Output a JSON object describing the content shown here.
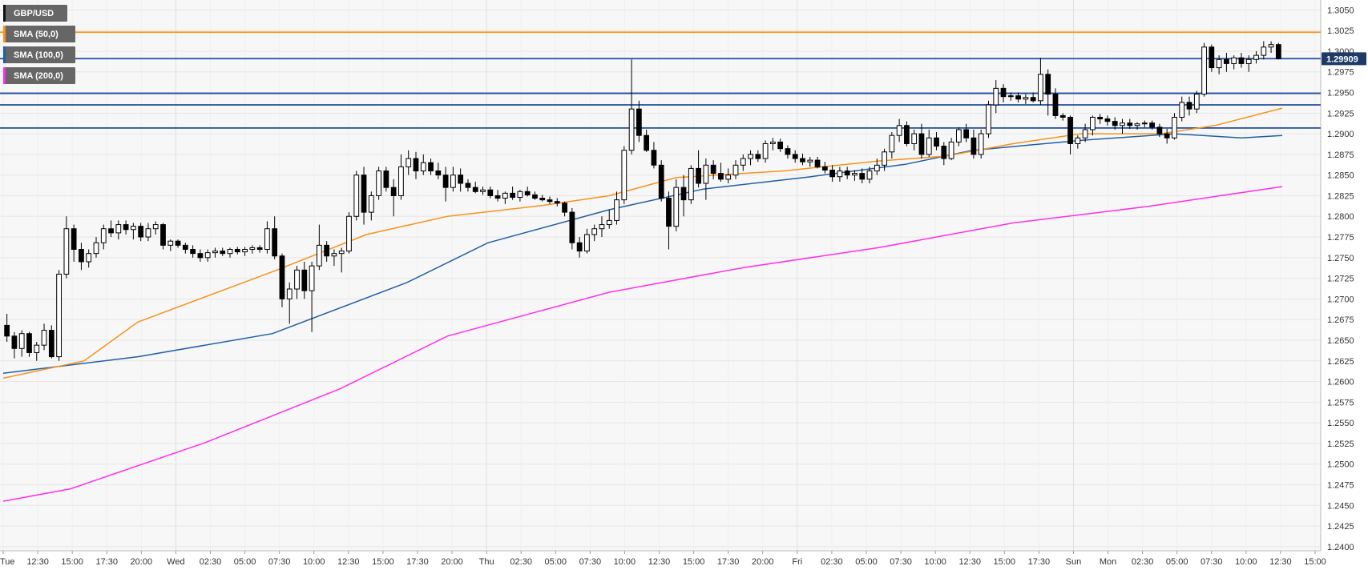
{
  "legend": {
    "main": "GBP/USD",
    "sma50": "SMA (50,0)",
    "sma100": "SMA (100,0)",
    "sma200": "SMA (200,0)"
  },
  "colors": {
    "background": "#f7f7f7",
    "grid": "#e6e6e6",
    "candle_up": "#ffffff",
    "candle_down": "#000000",
    "sma50": "#f7931a",
    "sma100": "#1f5fa8",
    "sma200": "#ff2ee6",
    "hline_orange": "#f7931a",
    "hline_blue": "#1f4ea0",
    "price_tag_bg": "#1f3a66"
  },
  "chart_data": {
    "type": "line",
    "y_ticks": [
      "1.3050",
      "1.3025",
      "1.3000",
      "1.2975",
      "1.2950",
      "1.2925",
      "1.2900",
      "1.2875",
      "1.2850",
      "1.2825",
      "1.2800",
      "1.2775",
      "1.2750",
      "1.2725",
      "1.2700",
      "1.2675",
      "1.2650",
      "1.2625",
      "1.2600",
      "1.2575",
      "1.2550",
      "1.2525",
      "1.2500",
      "1.2475",
      "1.2450",
      "1.2425",
      "1.2400"
    ],
    "ylim": [
      1.2395,
      1.3062
    ],
    "x_ticks": [
      "Tue",
      "12:30",
      "15:00",
      "17:30",
      "20:00",
      "Wed",
      "02:30",
      "05:00",
      "07:30",
      "10:00",
      "12:30",
      "15:00",
      "17:30",
      "20:00",
      "Thu",
      "02:30",
      "05:00",
      "07:30",
      "10:00",
      "12:30",
      "15:00",
      "17:30",
      "20:00",
      "Fri",
      "02:30",
      "05:00",
      "07:30",
      "10:00",
      "12:30",
      "15:00",
      "17:30",
      "Sun",
      "Mon",
      "02:30",
      "05:00",
      "07:30",
      "10:00",
      "12:30",
      "15:00"
    ],
    "current_price": "1.29909",
    "horizontal_levels": [
      {
        "value": 1.3023,
        "color": "orange"
      },
      {
        "value": 1.2991,
        "color": "blue"
      },
      {
        "value": 1.2949,
        "color": "blue"
      },
      {
        "value": 1.2935,
        "color": "blue"
      },
      {
        "value": 1.2907,
        "color": "blue"
      }
    ],
    "candles": [
      [
        1.2668,
        1.2682,
        1.2648,
        1.2655
      ],
      [
        1.2655,
        1.266,
        1.2628,
        1.264
      ],
      [
        1.264,
        1.2662,
        1.263,
        1.2658
      ],
      [
        1.2658,
        1.266,
        1.263,
        1.2635
      ],
      [
        1.2635,
        1.2648,
        1.2625,
        1.2644
      ],
      [
        1.2644,
        1.267,
        1.2638,
        1.2662
      ],
      [
        1.2662,
        1.2668,
        1.2628,
        1.263
      ],
      [
        1.263,
        1.2735,
        1.2625,
        1.273
      ],
      [
        1.273,
        1.28,
        1.2725,
        1.2785
      ],
      [
        1.2785,
        1.279,
        1.2745,
        1.276
      ],
      [
        1.276,
        1.2768,
        1.2735,
        1.2745
      ],
      [
        1.2745,
        1.276,
        1.2738,
        1.2755
      ],
      [
        1.2755,
        1.2775,
        1.275,
        1.2768
      ],
      [
        1.2768,
        1.279,
        1.276,
        1.2785
      ],
      [
        1.2785,
        1.2795,
        1.2775,
        1.278
      ],
      [
        1.278,
        1.2795,
        1.2772,
        1.279
      ],
      [
        1.279,
        1.2795,
        1.2778,
        1.2784
      ],
      [
        1.2784,
        1.2792,
        1.2772,
        1.2788
      ],
      [
        1.2788,
        1.2792,
        1.277,
        1.2775
      ],
      [
        1.2775,
        1.2792,
        1.277,
        1.2785
      ],
      [
        1.2785,
        1.2794,
        1.2778,
        1.279
      ],
      [
        1.279,
        1.2792,
        1.276,
        1.2765
      ],
      [
        1.2765,
        1.2772,
        1.2758,
        1.277
      ],
      [
        1.277,
        1.2772,
        1.2762,
        1.2765
      ],
      [
        1.2765,
        1.2768,
        1.2755,
        1.276
      ],
      [
        1.276,
        1.2765,
        1.275,
        1.2755
      ],
      [
        1.2755,
        1.276,
        1.2745,
        1.275
      ],
      [
        1.275,
        1.276,
        1.2745,
        1.2756
      ],
      [
        1.2756,
        1.2762,
        1.275,
        1.2758
      ],
      [
        1.2758,
        1.2762,
        1.2752,
        1.2755
      ],
      [
        1.2755,
        1.2762,
        1.275,
        1.276
      ],
      [
        1.276,
        1.2763,
        1.2754,
        1.2757
      ],
      [
        1.2757,
        1.2763,
        1.2752,
        1.276
      ],
      [
        1.276,
        1.2765,
        1.2755,
        1.2762
      ],
      [
        1.2762,
        1.2765,
        1.2756,
        1.276
      ],
      [
        1.276,
        1.2794,
        1.2755,
        1.2785
      ],
      [
        1.2785,
        1.28,
        1.2748,
        1.2752
      ],
      [
        1.2752,
        1.2755,
        1.269,
        1.27
      ],
      [
        1.27,
        1.272,
        1.267,
        1.2712
      ],
      [
        1.2712,
        1.274,
        1.27,
        1.2735
      ],
      [
        1.2735,
        1.2745,
        1.27,
        1.271
      ],
      [
        1.271,
        1.2745,
        1.266,
        1.274
      ],
      [
        1.274,
        1.279,
        1.2735,
        1.2765
      ],
      [
        1.2765,
        1.277,
        1.2745,
        1.2752
      ],
      [
        1.2752,
        1.276,
        1.274,
        1.2755
      ],
      [
        1.2755,
        1.2762,
        1.2732,
        1.2758
      ],
      [
        1.2758,
        1.2805,
        1.2755,
        1.28
      ],
      [
        1.28,
        1.2855,
        1.2795,
        1.285
      ],
      [
        1.285,
        1.286,
        1.279,
        1.2805
      ],
      [
        1.2805,
        1.283,
        1.2795,
        1.2825
      ],
      [
        1.2825,
        1.286,
        1.282,
        1.2855
      ],
      [
        1.2855,
        1.286,
        1.283,
        1.2835
      ],
      [
        1.2835,
        1.2845,
        1.28,
        1.2825
      ],
      [
        1.2825,
        1.2875,
        1.282,
        1.286
      ],
      [
        1.286,
        1.288,
        1.285,
        1.287
      ],
      [
        1.287,
        1.2878,
        1.2845,
        1.2855
      ],
      [
        1.2855,
        1.2875,
        1.285,
        1.2865
      ],
      [
        1.2865,
        1.287,
        1.285,
        1.2855
      ],
      [
        1.2855,
        1.2865,
        1.2845,
        1.285
      ],
      [
        1.285,
        1.286,
        1.2818,
        1.2835
      ],
      [
        1.2835,
        1.286,
        1.283,
        1.285
      ],
      [
        1.285,
        1.2858,
        1.283,
        1.284
      ],
      [
        1.284,
        1.2845,
        1.283,
        1.2835
      ],
      [
        1.2835,
        1.2842,
        1.2828,
        1.283
      ],
      [
        1.283,
        1.2836,
        1.2826,
        1.2832
      ],
      [
        1.2832,
        1.2836,
        1.2822,
        1.2825
      ],
      [
        1.2825,
        1.2832,
        1.2818,
        1.2822
      ],
      [
        1.2822,
        1.283,
        1.2815,
        1.2828
      ],
      [
        1.2828,
        1.2836,
        1.282,
        1.2823
      ],
      [
        1.2823,
        1.2832,
        1.2818,
        1.283
      ],
      [
        1.283,
        1.2836,
        1.2824,
        1.2826
      ],
      [
        1.2826,
        1.283,
        1.282,
        1.2822
      ],
      [
        1.2822,
        1.2826,
        1.2818,
        1.282
      ],
      [
        1.282,
        1.2824,
        1.2815,
        1.2818
      ],
      [
        1.2818,
        1.2822,
        1.2812,
        1.2816
      ],
      [
        1.2816,
        1.2818,
        1.28,
        1.2805
      ],
      [
        1.2805,
        1.281,
        1.276,
        1.2768
      ],
      [
        1.2768,
        1.2775,
        1.275,
        1.2758
      ],
      [
        1.2758,
        1.2785,
        1.2755,
        1.2778
      ],
      [
        1.2778,
        1.279,
        1.277,
        1.2785
      ],
      [
        1.2785,
        1.28,
        1.2775,
        1.279
      ],
      [
        1.279,
        1.2808,
        1.2785,
        1.2795
      ],
      [
        1.2795,
        1.283,
        1.279,
        1.282
      ],
      [
        1.282,
        1.2885,
        1.2815,
        1.288
      ],
      [
        1.288,
        1.299,
        1.2875,
        1.293
      ],
      [
        1.293,
        1.294,
        1.289,
        1.2898
      ],
      [
        1.2898,
        1.2905,
        1.2878,
        1.288
      ],
      [
        1.288,
        1.289,
        1.2858,
        1.2862
      ],
      [
        1.2862,
        1.2868,
        1.2818,
        1.2822
      ],
      [
        1.2822,
        1.283,
        1.276,
        1.2788
      ],
      [
        1.2788,
        1.2845,
        1.2782,
        1.2835
      ],
      [
        1.2835,
        1.285,
        1.28,
        1.282
      ],
      [
        1.282,
        1.2862,
        1.2815,
        1.2858
      ],
      [
        1.2858,
        1.288,
        1.2835,
        1.284
      ],
      [
        1.284,
        1.287,
        1.282,
        1.2862
      ],
      [
        1.2862,
        1.2868,
        1.2845,
        1.2852
      ],
      [
        1.2852,
        1.2865,
        1.2842,
        1.2845
      ],
      [
        1.2845,
        1.2858,
        1.284,
        1.285
      ],
      [
        1.285,
        1.2868,
        1.2845,
        1.2862
      ],
      [
        1.2862,
        1.2875,
        1.2855,
        1.287
      ],
      [
        1.287,
        1.288,
        1.2862,
        1.2875
      ],
      [
        1.2875,
        1.288,
        1.2866,
        1.287
      ],
      [
        1.287,
        1.2892,
        1.2865,
        1.2888
      ],
      [
        1.2888,
        1.2895,
        1.288,
        1.289
      ],
      [
        1.289,
        1.2894,
        1.2878,
        1.2882
      ],
      [
        1.2882,
        1.2886,
        1.287,
        1.2875
      ],
      [
        1.2875,
        1.288,
        1.2865,
        1.287
      ],
      [
        1.287,
        1.2876,
        1.2862,
        1.2866
      ],
      [
        1.2866,
        1.2872,
        1.286,
        1.2868
      ],
      [
        1.2868,
        1.2872,
        1.2858,
        1.286
      ],
      [
        1.286,
        1.2866,
        1.2852,
        1.2856
      ],
      [
        1.2856,
        1.2862,
        1.2842,
        1.2848
      ],
      [
        1.2848,
        1.286,
        1.2842,
        1.2855
      ],
      [
        1.2855,
        1.286,
        1.2845,
        1.285
      ],
      [
        1.285,
        1.2856,
        1.2843,
        1.2852
      ],
      [
        1.2852,
        1.2858,
        1.284,
        1.2845
      ],
      [
        1.2845,
        1.286,
        1.284,
        1.2855
      ],
      [
        1.2855,
        1.287,
        1.285,
        1.2862
      ],
      [
        1.2862,
        1.2882,
        1.2855,
        1.2878
      ],
      [
        1.2878,
        1.2902,
        1.287,
        1.2898
      ],
      [
        1.2898,
        1.2918,
        1.289,
        1.291
      ],
      [
        1.291,
        1.2915,
        1.2885,
        1.2888
      ],
      [
        1.2888,
        1.2905,
        1.288,
        1.29
      ],
      [
        1.29,
        1.2912,
        1.287,
        1.2875
      ],
      [
        1.2875,
        1.2905,
        1.2872,
        1.2895
      ],
      [
        1.2895,
        1.2902,
        1.288,
        1.2885
      ],
      [
        1.2885,
        1.289,
        1.2862,
        1.287
      ],
      [
        1.287,
        1.2895,
        1.2868,
        1.289
      ],
      [
        1.289,
        1.2908,
        1.2885,
        1.2905
      ],
      [
        1.2905,
        1.2912,
        1.289,
        1.2895
      ],
      [
        1.2895,
        1.2905,
        1.287,
        1.2875
      ],
      [
        1.2875,
        1.2905,
        1.287,
        1.29
      ],
      [
        1.29,
        1.294,
        1.2895,
        1.2935
      ],
      [
        1.2935,
        1.2965,
        1.2925,
        1.2955
      ],
      [
        1.2955,
        1.296,
        1.2938,
        1.2945
      ],
      [
        1.2945,
        1.295,
        1.294,
        1.2946
      ],
      [
        1.2946,
        1.295,
        1.2938,
        1.2942
      ],
      [
        1.2942,
        1.2948,
        1.2936,
        1.2944
      ],
      [
        1.2944,
        1.295,
        1.2938,
        1.294
      ],
      [
        1.294,
        1.2992,
        1.2935,
        1.2972
      ],
      [
        1.2972,
        1.2978,
        1.2922,
        1.2948
      ],
      [
        1.2948,
        1.2955,
        1.2918,
        1.2922
      ],
      [
        1.2922,
        1.2925,
        1.2916,
        1.292
      ],
      [
        1.292,
        1.2922,
        1.2875,
        1.2888
      ],
      [
        1.2888,
        1.2898,
        1.2882,
        1.2895
      ],
      [
        1.2895,
        1.2912,
        1.289,
        1.2905
      ],
      [
        1.2905,
        1.2922,
        1.2898,
        1.292
      ],
      [
        1.292,
        1.2924,
        1.2912,
        1.2918
      ],
      [
        1.2918,
        1.2922,
        1.291,
        1.2915
      ],
      [
        1.2915,
        1.292,
        1.2905,
        1.291
      ],
      [
        1.291,
        1.2918,
        1.29,
        1.2913
      ],
      [
        1.2913,
        1.2918,
        1.2906,
        1.291
      ],
      [
        1.291,
        1.2914,
        1.2905,
        1.2912
      ],
      [
        1.2912,
        1.2916,
        1.2908,
        1.2913
      ],
      [
        1.2913,
        1.2916,
        1.2905,
        1.2908
      ],
      [
        1.2908,
        1.2912,
        1.2896,
        1.29
      ],
      [
        1.29,
        1.2906,
        1.2888,
        1.2895
      ],
      [
        1.2895,
        1.2925,
        1.2893,
        1.292
      ],
      [
        1.292,
        1.2945,
        1.2915,
        1.2938
      ],
      [
        1.2938,
        1.2945,
        1.2922,
        1.293
      ],
      [
        1.293,
        1.2952,
        1.2925,
        1.2948
      ],
      [
        1.2948,
        1.301,
        1.2945,
        1.3005
      ],
      [
        1.3005,
        1.3008,
        1.2975,
        1.298
      ],
      [
        1.298,
        1.2995,
        1.2972,
        1.299
      ],
      [
        1.299,
        1.2998,
        1.2975,
        1.2985
      ],
      [
        1.2985,
        1.2995,
        1.2978,
        1.2992
      ],
      [
        1.2992,
        1.2998,
        1.298,
        1.2985
      ],
      [
        1.2985,
        1.2995,
        1.2975,
        1.299
      ],
      [
        1.299,
        1.3,
        1.2985,
        1.2995
      ],
      [
        1.2995,
        1.3012,
        1.299,
        1.3005
      ],
      [
        1.3005,
        1.3012,
        1.2998,
        1.3008
      ],
      [
        1.3008,
        1.301,
        1.299,
        1.2991
      ]
    ],
    "sma50": [
      [
        0,
        1.2604
      ],
      [
        0.06,
        1.2625
      ],
      [
        0.1,
        1.2672
      ],
      [
        0.2,
        1.2733
      ],
      [
        0.27,
        1.2778
      ],
      [
        0.33,
        1.28
      ],
      [
        0.4,
        1.2813
      ],
      [
        0.45,
        1.2825
      ],
      [
        0.5,
        1.2847
      ],
      [
        0.58,
        1.2855
      ],
      [
        0.65,
        1.2867
      ],
      [
        0.7,
        1.2873
      ],
      [
        0.75,
        1.2888
      ],
      [
        0.8,
        1.29
      ],
      [
        0.86,
        1.29
      ],
      [
        0.9,
        1.291
      ],
      [
        0.95,
        1.2931
      ]
    ],
    "sma100": [
      [
        0,
        1.261
      ],
      [
        0.1,
        1.263
      ],
      [
        0.2,
        1.2658
      ],
      [
        0.3,
        1.272
      ],
      [
        0.36,
        1.2768
      ],
      [
        0.45,
        1.2808
      ],
      [
        0.52,
        1.2833
      ],
      [
        0.6,
        1.2848
      ],
      [
        0.67,
        1.2863
      ],
      [
        0.72,
        1.288
      ],
      [
        0.8,
        1.2892
      ],
      [
        0.87,
        1.29
      ],
      [
        0.92,
        1.2895
      ],
      [
        0.95,
        1.2898
      ]
    ],
    "sma200": [
      [
        0,
        1.2455
      ],
      [
        0.05,
        1.247
      ],
      [
        0.15,
        1.2526
      ],
      [
        0.25,
        1.2591
      ],
      [
        0.33,
        1.2655
      ],
      [
        0.45,
        1.2708
      ],
      [
        0.55,
        1.2738
      ],
      [
        0.65,
        1.2762
      ],
      [
        0.75,
        1.2792
      ],
      [
        0.85,
        1.2812
      ],
      [
        0.95,
        1.2836
      ]
    ]
  }
}
